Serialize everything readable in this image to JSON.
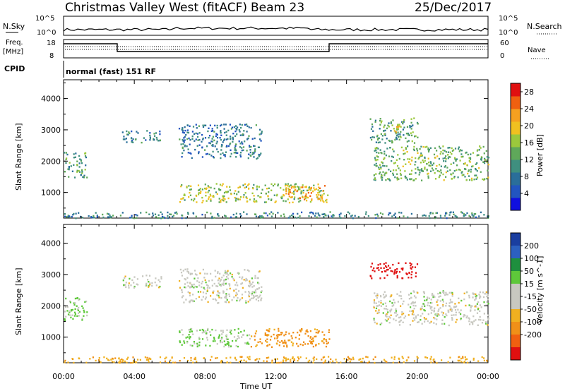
{
  "header": {
    "station": "Christmas Valley West (fitACF)",
    "beam": "Beam 23",
    "date": "25/Dec/2017"
  },
  "panels": {
    "nsky_label": "N.Sky",
    "nsearch_label": "N.Search",
    "freq_label_1": "Freq.",
    "freq_label_2": "[MHz]",
    "nave_label": "Nave",
    "cpid_label": "CPID",
    "cpid_value": "normal (fast) 151 RF",
    "noise_ticks_left": [
      "10^5",
      "10^0"
    ],
    "noise_ticks_right": [
      "10^5",
      "10^0"
    ],
    "freq_ticks": [
      "18",
      "8"
    ],
    "nave_ticks": [
      "60",
      "0"
    ]
  },
  "colors": {
    "power": [
      "#1010e0",
      "#2255c0",
      "#2a6e9a",
      "#3f8f7f",
      "#5fa85a",
      "#9bc83c",
      "#f0c020",
      "#f5a020",
      "#f06010",
      "#e01010"
    ],
    "velocity": [
      "#1a3ea0",
      "#2c60c0",
      "#1e8f3e",
      "#5ec83a",
      "#c8c8c0",
      "#c8c8c0",
      "#f0b020",
      "#f09018",
      "#f06010",
      "#e01010"
    ]
  },
  "chart_data": [
    {
      "type": "heatmap",
      "title": "",
      "xlabel": "Time UT",
      "ylabel": "Slant Range [km]",
      "xlim": [
        "00:00",
        "24:00"
      ],
      "ylim": [
        180,
        4600
      ],
      "xticks": [
        "00:00",
        "04:00",
        "08:00",
        "12:00",
        "16:00",
        "20:00",
        "00:00"
      ],
      "yticks": [
        "1000",
        "2000",
        "3000",
        "4000"
      ],
      "colorbar": {
        "label": "Power [dB]",
        "ticks": [
          "4",
          "8",
          "12",
          "16",
          "20",
          "24",
          "28"
        ],
        "range": [
          0,
          30
        ]
      },
      "regions": [
        {
          "t": [
            0.0,
            1.3
          ],
          "r": [
            1500,
            2300
          ],
          "level": 12
        },
        {
          "t": [
            3.3,
            5.5
          ],
          "r": [
            2600,
            3000
          ],
          "level": 8
        },
        {
          "t": [
            6.5,
            11.2
          ],
          "r": [
            2100,
            3200
          ],
          "level": 8
        },
        {
          "t": [
            6.5,
            15.0
          ],
          "r": [
            700,
            1300
          ],
          "level": 16
        },
        {
          "t": [
            12.5,
            14.8
          ],
          "r": [
            800,
            1250
          ],
          "level": 22
        },
        {
          "t": [
            17.3,
            20.0
          ],
          "r": [
            2600,
            3400
          ],
          "level": 12
        },
        {
          "t": [
            18.5,
            19.2
          ],
          "r": [
            2950,
            3150
          ],
          "level": 22
        },
        {
          "t": [
            17.5,
            24.0
          ],
          "r": [
            1400,
            2500
          ],
          "level": 14
        },
        {
          "t": [
            0.0,
            24.0
          ],
          "r": [
            200,
            400
          ],
          "level": 10
        }
      ]
    },
    {
      "type": "heatmap",
      "title": "",
      "xlabel": "Time UT",
      "ylabel": "Slant Range [km]",
      "xlim": [
        "00:00",
        "24:00"
      ],
      "ylim": [
        180,
        4600
      ],
      "xticks": [
        "00:00",
        "04:00",
        "08:00",
        "12:00",
        "16:00",
        "20:00",
        "00:00"
      ],
      "yticks": [
        "1000",
        "2000",
        "3000",
        "4000"
      ],
      "colorbar": {
        "label": "Velocity [m s^-1]",
        "ticks": [
          "200",
          "100",
          "50",
          "15",
          "-15",
          "-50",
          "-100",
          "-200"
        ]
      },
      "regions": [
        {
          "t": [
            0.0,
            1.3
          ],
          "r": [
            1500,
            2300
          ],
          "velocity": 20
        },
        {
          "t": [
            3.3,
            5.5
          ],
          "r": [
            2600,
            3000
          ],
          "velocity": 0
        },
        {
          "t": [
            6.5,
            11.2
          ],
          "r": [
            2100,
            3200
          ],
          "velocity": 0
        },
        {
          "t": [
            6.5,
            10.5
          ],
          "r": [
            700,
            1300
          ],
          "velocity": 20
        },
        {
          "t": [
            10.5,
            15.0
          ],
          "r": [
            700,
            1300
          ],
          "velocity": -60
        },
        {
          "t": [
            17.3,
            20.0
          ],
          "r": [
            2900,
            3400
          ],
          "velocity": -220
        },
        {
          "t": [
            17.5,
            24.0
          ],
          "r": [
            1400,
            2500
          ],
          "velocity": 0
        },
        {
          "t": [
            0.0,
            24.0
          ],
          "r": [
            200,
            400
          ],
          "velocity": -40
        }
      ]
    }
  ]
}
